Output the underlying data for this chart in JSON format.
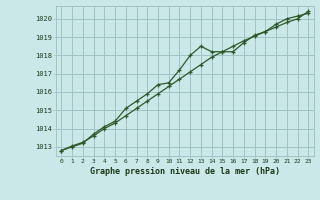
{
  "title": "Graphe pression niveau de la mer (hPa)",
  "background_color": "#cbe8e8",
  "grid_color": "#a0c4c4",
  "line_color": "#2d5a2d",
  "x_min": -0.5,
  "x_max": 23.5,
  "y_min": 1012.5,
  "y_max": 1020.7,
  "y_ticks": [
    1013,
    1014,
    1015,
    1016,
    1017,
    1018,
    1019,
    1020
  ],
  "x_ticks": [
    0,
    1,
    2,
    3,
    4,
    5,
    6,
    7,
    8,
    9,
    10,
    11,
    12,
    13,
    14,
    15,
    16,
    17,
    18,
    19,
    20,
    21,
    22,
    23
  ],
  "series1": {
    "x": [
      0,
      1,
      2,
      3,
      4,
      5,
      6,
      7,
      8,
      9,
      10,
      11,
      12,
      13,
      14,
      15,
      16,
      17,
      18,
      19,
      20,
      21,
      22,
      23
    ],
    "y": [
      1012.8,
      1013.0,
      1013.2,
      1013.7,
      1014.1,
      1014.4,
      1015.1,
      1015.5,
      1015.9,
      1016.4,
      1016.5,
      1017.2,
      1018.0,
      1018.5,
      1018.2,
      1018.2,
      1018.2,
      1018.7,
      1019.1,
      1019.3,
      1019.7,
      1020.0,
      1020.15,
      1020.3
    ]
  },
  "series2": {
    "x": [
      0,
      1,
      2,
      3,
      4,
      5,
      6,
      7,
      8,
      9,
      10,
      11,
      12,
      13,
      14,
      15,
      16,
      17,
      18,
      19,
      20,
      21,
      22,
      23
    ],
    "y": [
      1012.8,
      1013.05,
      1013.25,
      1013.6,
      1014.0,
      1014.3,
      1014.7,
      1015.1,
      1015.5,
      1015.9,
      1016.3,
      1016.7,
      1017.1,
      1017.5,
      1017.9,
      1018.2,
      1018.5,
      1018.8,
      1019.05,
      1019.3,
      1019.55,
      1019.8,
      1020.0,
      1020.4
    ]
  }
}
